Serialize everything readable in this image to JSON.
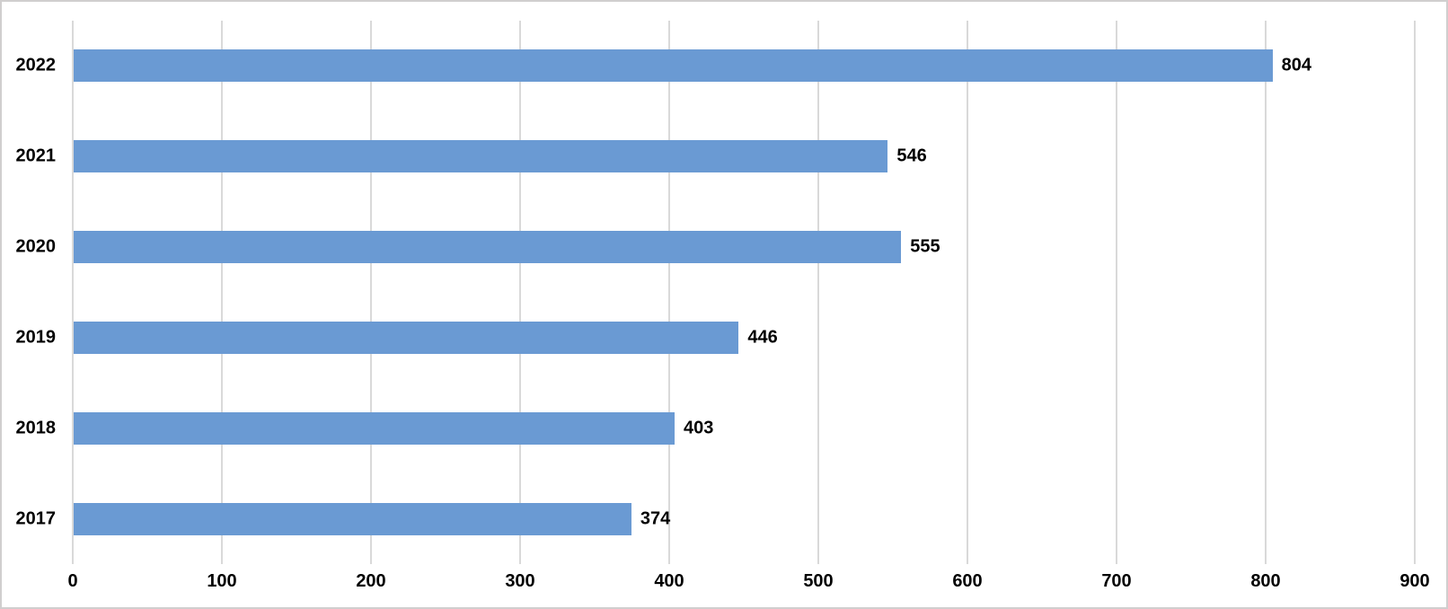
{
  "chart": {
    "background": "#FFFFFF",
    "border_color": "#D0CECE",
    "bar_color": "#6A9AD3",
    "gridline_color": "#D9D9D9",
    "label_color": "#000000"
  },
  "chart_data": {
    "type": "bar",
    "orientation": "horizontal",
    "title": "",
    "xlabel": "",
    "ylabel": "",
    "categories": [
      "2022",
      "2021",
      "2020",
      "2019",
      "2018",
      "2017"
    ],
    "values": [
      804,
      546,
      555,
      446,
      403,
      374
    ],
    "data_labels": true,
    "xlim": [
      0,
      900
    ],
    "xticks": [
      0,
      100,
      200,
      300,
      400,
      500,
      600,
      700,
      800,
      900
    ],
    "grid": "vertical-major",
    "legend": "none"
  }
}
